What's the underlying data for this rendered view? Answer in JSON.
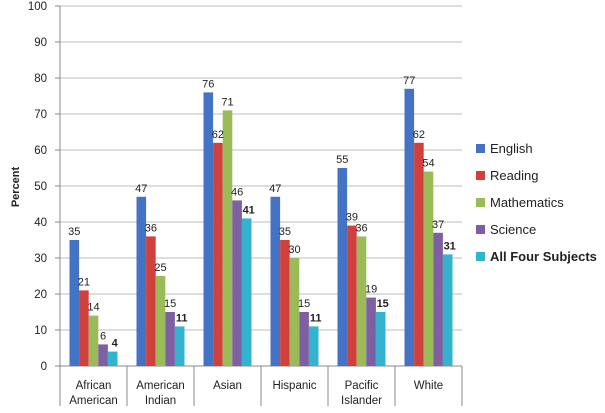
{
  "chart_data": {
    "type": "bar",
    "title": "",
    "xlabel": "",
    "ylabel": "Percent",
    "ylim": [
      0,
      100
    ],
    "yticks": [
      0,
      10,
      20,
      30,
      40,
      50,
      60,
      70,
      80,
      90,
      100
    ],
    "grid": true,
    "legend_position": "right",
    "categories": [
      [
        "African",
        "American"
      ],
      [
        "American",
        "Indian"
      ],
      [
        "Asian"
      ],
      [
        "Hispanic"
      ],
      [
        "Pacific",
        "Islander"
      ],
      [
        "White"
      ]
    ],
    "series": [
      {
        "name": "English",
        "color": "#4472C4",
        "bold": false,
        "values": [
          35,
          47,
          76,
          47,
          55,
          77
        ]
      },
      {
        "name": "Reading",
        "color": "#D0413D",
        "bold": false,
        "values": [
          21,
          36,
          62,
          35,
          39,
          62
        ]
      },
      {
        "name": "Mathematics",
        "color": "#9BBB59",
        "bold": false,
        "values": [
          14,
          25,
          71,
          30,
          36,
          54
        ]
      },
      {
        "name": "Science",
        "color": "#7E5FA2",
        "bold": false,
        "values": [
          6,
          15,
          46,
          15,
          19,
          37
        ]
      },
      {
        "name": "All Four Subjects",
        "color": "#32B4CF",
        "bold": true,
        "values": [
          4,
          11,
          41,
          11,
          15,
          31
        ]
      }
    ]
  }
}
